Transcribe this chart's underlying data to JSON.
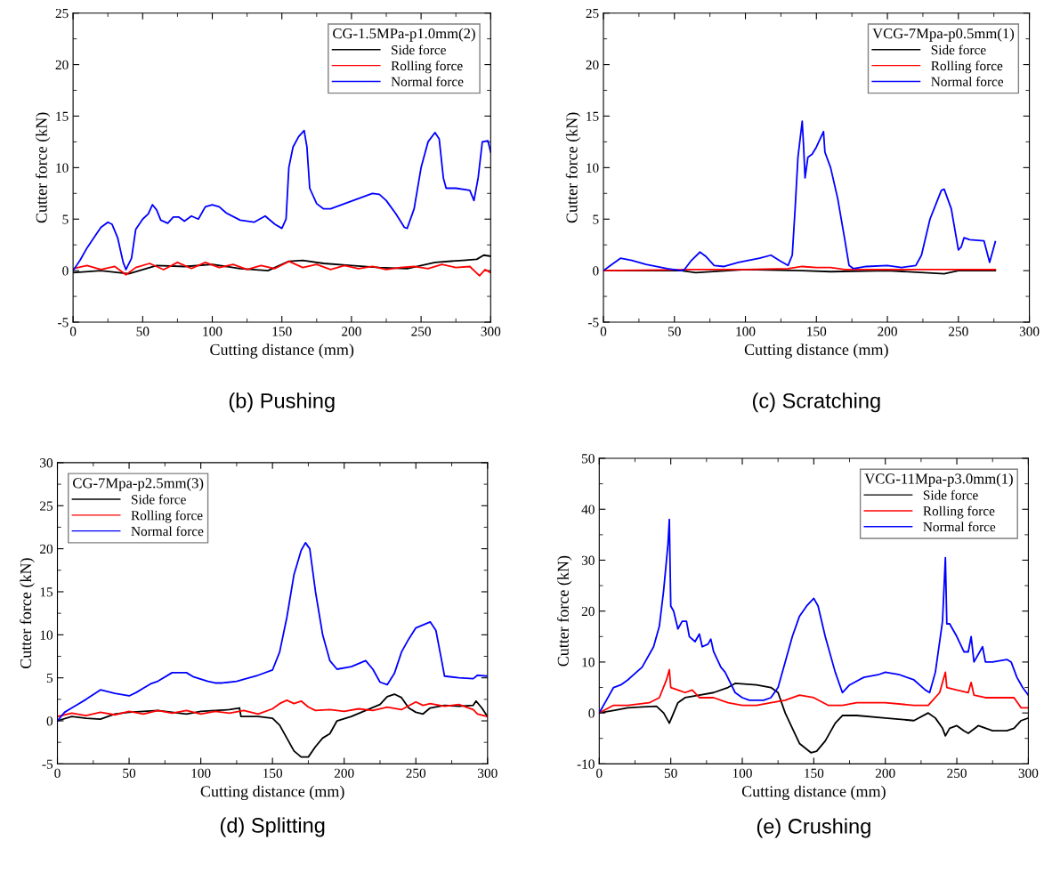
{
  "chart_data": [
    {
      "type": "line",
      "title": "(b) Pushing",
      "xlabel": "Cutting distance (mm)",
      "ylabel": "Cutter force (kN)",
      "legend_title": "CG-1.5MPa-p1.0mm(2)",
      "legend": "top right",
      "grid": false,
      "xlim": [
        0,
        300
      ],
      "xticks": [
        0,
        50,
        100,
        150,
        200,
        250,
        300
      ],
      "ylim": [
        -5,
        25
      ],
      "yticks": [
        -5,
        0,
        5,
        10,
        15,
        20,
        25
      ],
      "series": [
        {
          "name": "Side force",
          "color": "#000000",
          "x": [
            0,
            20,
            40,
            60,
            80,
            100,
            120,
            140,
            155,
            165,
            180,
            200,
            220,
            240,
            260,
            280,
            290,
            295,
            300
          ],
          "values": [
            -0.2,
            0,
            -0.3,
            0.5,
            0.4,
            0.6,
            0.2,
            0,
            0.9,
            1.0,
            0.7,
            0.5,
            0.3,
            0.2,
            0.8,
            1.0,
            1.1,
            1.5,
            1.4
          ]
        },
        {
          "name": "Rolling force",
          "color": "#ff0000",
          "x": [
            0,
            10,
            20,
            30,
            38,
            45,
            55,
            65,
            75,
            85,
            95,
            105,
            115,
            125,
            135,
            145,
            155,
            165,
            175,
            185,
            195,
            205,
            215,
            225,
            235,
            245,
            255,
            265,
            275,
            285,
            292,
            296,
            300
          ],
          "values": [
            0.2,
            0.5,
            0.1,
            0.4,
            -0.4,
            0.3,
            0.7,
            0.1,
            0.8,
            0.2,
            0.8,
            0.3,
            0.6,
            0.1,
            0.5,
            0.2,
            0.9,
            0.3,
            0.6,
            0.1,
            0.5,
            0.2,
            0.4,
            0.1,
            0.3,
            0.4,
            0.2,
            0.6,
            0.3,
            0.4,
            -0.5,
            0.1,
            -0.2
          ]
        },
        {
          "name": "Normal force",
          "color": "#0000ff",
          "x": [
            0,
            5,
            10,
            15,
            20,
            25,
            28,
            32,
            36,
            38,
            42,
            45,
            50,
            54,
            57,
            60,
            63,
            68,
            72,
            76,
            80,
            85,
            90,
            95,
            100,
            105,
            110,
            120,
            130,
            138,
            145,
            150,
            153,
            155,
            158,
            162,
            166,
            168,
            170,
            175,
            180,
            185,
            195,
            205,
            215,
            220,
            225,
            232,
            238,
            240,
            245,
            250,
            255,
            260,
            263,
            266,
            268,
            275,
            285,
            288,
            291,
            294,
            298,
            300
          ],
          "values": [
            0,
            1,
            2.2,
            3.2,
            4.2,
            4.7,
            4.5,
            3.2,
            0.8,
            0.1,
            1.2,
            4,
            5,
            5.5,
            6.4,
            5.9,
            4.9,
            4.6,
            5.2,
            5.2,
            4.8,
            5.3,
            5.0,
            6.2,
            6.4,
            6.2,
            5.6,
            4.9,
            4.7,
            5.3,
            4.5,
            4.1,
            5,
            10,
            12,
            13,
            13.6,
            12,
            8,
            6.5,
            6,
            6,
            6.5,
            7,
            7.5,
            7.4,
            6.8,
            5.5,
            4.2,
            4.1,
            6,
            10,
            12.5,
            13.4,
            12.8,
            9,
            8,
            8,
            7.8,
            6.8,
            9,
            12.5,
            12.6,
            11.5
          ]
        }
      ]
    },
    {
      "type": "line",
      "title": "(c) Scratching",
      "xlabel": "Cutting distance (mm)",
      "ylabel": "Cutter force (kN)",
      "legend_title": "VCG-7Mpa-p0.5mm(1)",
      "legend": "top right",
      "grid": false,
      "xlim": [
        0,
        300
      ],
      "xticks": [
        0,
        50,
        100,
        150,
        200,
        250,
        300
      ],
      "ylim": [
        -5,
        25
      ],
      "yticks": [
        -5,
        0,
        5,
        10,
        15,
        20,
        25
      ],
      "series": [
        {
          "name": "Side force",
          "color": "#000000",
          "x": [
            0,
            55,
            65,
            100,
            140,
            160,
            200,
            240,
            250,
            276
          ],
          "values": [
            0,
            0,
            -0.2,
            0.1,
            0,
            -0.1,
            0,
            -0.3,
            0,
            0
          ]
        },
        {
          "name": "Rolling force",
          "color": "#ff0000",
          "x": [
            0,
            60,
            100,
            130,
            140,
            150,
            160,
            170,
            200,
            240,
            276
          ],
          "values": [
            0,
            0.1,
            0.1,
            0.2,
            0.4,
            0.3,
            0.3,
            0.1,
            0.1,
            0.1,
            0.1
          ]
        },
        {
          "name": "Normal force",
          "color": "#0000ff",
          "x": [
            0,
            5,
            12,
            20,
            30,
            45,
            55,
            57,
            62,
            68,
            72,
            78,
            85,
            95,
            110,
            118,
            125,
            130,
            133,
            135,
            137,
            140,
            141,
            142,
            144,
            147,
            150,
            155,
            156,
            160,
            165,
            170,
            173,
            176,
            185,
            200,
            210,
            220,
            224,
            230,
            238,
            240,
            245,
            250,
            252,
            254,
            258,
            268,
            272,
            276
          ],
          "values": [
            0,
            0.5,
            1.2,
            1.0,
            0.6,
            0.2,
            0,
            0.1,
            1.0,
            1.8,
            1.4,
            0.5,
            0.4,
            0.8,
            1.2,
            1.5,
            0.9,
            0.5,
            1.5,
            6,
            11,
            14.5,
            12,
            9,
            11,
            11.3,
            12,
            13.5,
            11.5,
            10,
            7,
            3,
            0.5,
            0.2,
            0.4,
            0.5,
            0.3,
            0.5,
            1.5,
            5,
            7.8,
            7.9,
            6,
            2,
            2.3,
            3.2,
            3,
            2.9,
            0.8,
            2.8
          ]
        }
      ]
    },
    {
      "type": "line",
      "title": "(d) Splitting",
      "xlabel": "Cutting distance (mm)",
      "ylabel": "Cutter force (kN)",
      "legend_title": "CG-7Mpa-p2.5mm(3)",
      "legend": "top left",
      "grid": false,
      "xlim": [
        0,
        300
      ],
      "xticks": [
        0,
        50,
        100,
        150,
        200,
        250,
        300
      ],
      "ylim": [
        -5,
        30
      ],
      "yticks": [
        -5,
        0,
        5,
        10,
        15,
        20,
        25,
        30
      ],
      "series": [
        {
          "name": "Side force",
          "color": "#000000",
          "x": [
            0,
            10,
            20,
            30,
            40,
            50,
            60,
            70,
            80,
            90,
            100,
            110,
            120,
            127,
            128,
            140,
            150,
            155,
            160,
            165,
            170,
            175,
            180,
            185,
            190,
            195,
            205,
            215,
            225,
            230,
            235,
            240,
            245,
            250,
            255,
            260,
            270,
            280,
            290,
            292,
            296,
            300
          ],
          "values": [
            0,
            0.5,
            0.3,
            0.2,
            0.8,
            1,
            1.1,
            1.2,
            1.0,
            0.8,
            1.1,
            1.2,
            1.3,
            1.5,
            0.5,
            0.5,
            0.3,
            -0.5,
            -2,
            -3.5,
            -4.2,
            -4.2,
            -3,
            -2,
            -1.5,
            0,
            0.5,
            1.2,
            1.9,
            2.8,
            3.1,
            2.7,
            1.5,
            1,
            0.8,
            1.5,
            1.8,
            1.7,
            1.8,
            2.3,
            1.5,
            0.5
          ]
        },
        {
          "name": "Rolling force",
          "color": "#ff0000",
          "x": [
            0,
            10,
            20,
            30,
            40,
            50,
            60,
            70,
            80,
            90,
            100,
            110,
            120,
            130,
            140,
            150,
            155,
            160,
            165,
            170,
            175,
            180,
            190,
            200,
            210,
            220,
            230,
            240,
            250,
            255,
            260,
            270,
            280,
            290,
            293,
            300
          ],
          "values": [
            0.5,
            0.9,
            0.6,
            1.0,
            0.7,
            1.1,
            0.8,
            1.2,
            0.9,
            1.2,
            0.8,
            1.1,
            0.9,
            1.2,
            0.8,
            1.4,
            2.0,
            2.4,
            2.0,
            2.3,
            1.6,
            1.2,
            1.3,
            1.1,
            1.4,
            1.2,
            1.6,
            1.3,
            2.2,
            1.8,
            2.0,
            1.7,
            1.9,
            1.3,
            0.8,
            0.5
          ]
        },
        {
          "name": "Normal force",
          "color": "#0000ff",
          "x": [
            0,
            5,
            10,
            15,
            20,
            30,
            40,
            50,
            55,
            60,
            65,
            70,
            80,
            90,
            95,
            105,
            110,
            115,
            125,
            140,
            150,
            155,
            160,
            165,
            170,
            173,
            176,
            180,
            185,
            190,
            195,
            205,
            215,
            220,
            225,
            230,
            235,
            240,
            245,
            250,
            260,
            264,
            268,
            270,
            280,
            290,
            293,
            300
          ],
          "values": [
            0,
            1,
            1.5,
            2,
            2.5,
            3.6,
            3.2,
            2.9,
            3.3,
            3.8,
            4.3,
            4.6,
            5.6,
            5.6,
            5.1,
            4.6,
            4.4,
            4.4,
            4.6,
            5.3,
            5.9,
            8,
            12,
            17,
            19.8,
            20.7,
            20,
            15,
            10,
            7,
            6,
            6.3,
            7,
            6,
            4.5,
            4.2,
            5.5,
            8,
            9.5,
            10.8,
            11.5,
            10.5,
            7,
            5.2,
            5,
            4.9,
            5.3,
            5.2
          ]
        }
      ]
    },
    {
      "type": "line",
      "title": "(e) Crushing",
      "xlabel": "Cutting distance (mm)",
      "ylabel": "Cutter force (kN)",
      "legend_title": "VCG-11Mpa-p3.0mm(1)",
      "legend": "top right",
      "grid": false,
      "xlim": [
        0,
        300
      ],
      "xticks": [
        0,
        50,
        100,
        150,
        200,
        250,
        300
      ],
      "ylim": [
        -10,
        50
      ],
      "yticks": [
        -10,
        0,
        10,
        20,
        30,
        40,
        50
      ],
      "series": [
        {
          "name": "Side force",
          "color": "#000000",
          "x": [
            0,
            10,
            20,
            30,
            40,
            45,
            49,
            52,
            55,
            60,
            70,
            80,
            90,
            95,
            110,
            120,
            125,
            130,
            135,
            140,
            148,
            152,
            158,
            165,
            170,
            180,
            200,
            220,
            230,
            235,
            240,
            242,
            245,
            250,
            255,
            258,
            265,
            275,
            285,
            290,
            295,
            300
          ],
          "values": [
            0,
            0.5,
            1,
            1.2,
            1.3,
            0,
            -2,
            0,
            2,
            3,
            3.5,
            4,
            5,
            5.8,
            5.5,
            5,
            4,
            0,
            -3,
            -6,
            -7.8,
            -7.5,
            -5.5,
            -2,
            -0.5,
            -0.5,
            -1,
            -1.5,
            0,
            -1,
            -3,
            -4.5,
            -3,
            -2.5,
            -3.5,
            -4,
            -2.5,
            -3.5,
            -3.5,
            -3,
            -1.5,
            -1
          ]
        },
        {
          "name": "Rolling force",
          "color": "#ff0000",
          "x": [
            0,
            10,
            20,
            35,
            42,
            47,
            49,
            50,
            55,
            60,
            65,
            70,
            80,
            90,
            100,
            110,
            120,
            130,
            140,
            150,
            160,
            170,
            180,
            200,
            220,
            230,
            238,
            242,
            243,
            250,
            258,
            260,
            262,
            270,
            285,
            290,
            295,
            300
          ],
          "values": [
            0,
            1.5,
            1.5,
            2,
            3,
            6.5,
            8.5,
            5,
            4.5,
            4,
            4.5,
            3,
            3,
            2,
            1.5,
            1.5,
            2,
            2.5,
            3.5,
            3,
            1.5,
            1.5,
            2,
            2,
            1.5,
            1.5,
            4,
            8,
            5,
            4.5,
            4,
            6,
            3.5,
            3,
            3,
            3,
            1,
            1
          ]
        },
        {
          "name": "Normal force",
          "color": "#0000ff",
          "x": [
            0,
            5,
            10,
            15,
            20,
            30,
            38,
            42,
            45,
            48,
            49,
            50,
            52,
            55,
            58,
            61,
            63,
            67,
            70,
            72,
            76,
            78,
            80,
            85,
            88,
            95,
            100,
            105,
            115,
            120,
            125,
            130,
            135,
            140,
            145,
            150,
            153,
            158,
            165,
            170,
            175,
            185,
            195,
            200,
            210,
            220,
            228,
            231,
            235,
            240,
            242,
            243,
            245,
            250,
            255,
            258,
            260,
            262,
            266,
            268,
            270,
            275,
            285,
            288,
            292,
            296,
            300
          ],
          "values": [
            0,
            2.5,
            5,
            5.5,
            6.5,
            9,
            13,
            17,
            24,
            33,
            38,
            21,
            20,
            16.5,
            18,
            18,
            15,
            14,
            15.5,
            13,
            13.5,
            14.5,
            12,
            9,
            8,
            4,
            3,
            2.5,
            2.5,
            3,
            5,
            10,
            15,
            19,
            21,
            22.5,
            21,
            15,
            8,
            4,
            5.5,
            7,
            7.5,
            8,
            7.5,
            6.5,
            4.5,
            4,
            8,
            18,
            30.5,
            17.5,
            17.5,
            15,
            12,
            12,
            15,
            10,
            12,
            13,
            10,
            10,
            10.5,
            10,
            7,
            5,
            3.5
          ]
        }
      ]
    }
  ]
}
